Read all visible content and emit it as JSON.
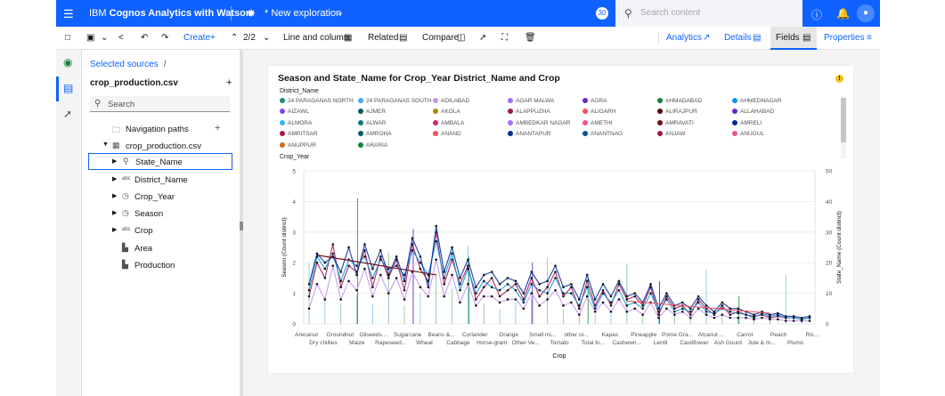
{
  "header": {
    "brand_light": "IBM ",
    "brand_bold": "Cognos Analytics with Watson",
    "exploration_title": "* New exploration",
    "notification_count": "30",
    "search_placeholder": "Search content"
  },
  "toolbar": {
    "create_label": "Create",
    "page_indicator": "2/2",
    "visualization_label": "Line and column",
    "related_label": "Related",
    "compare_label": "Compare",
    "tabs": [
      "Analytics",
      "Details",
      "Fields",
      "Properties"
    ]
  },
  "panel": {
    "breadcrumb": "Selected sources",
    "breadcrumb_sep": "/",
    "source_name": "crop_production.csv",
    "search_placeholder": "Search",
    "tree": [
      {
        "label": "Navigation paths",
        "icon": "folder-icon"
      },
      {
        "label": "crop_production.csv",
        "icon": "table-icon"
      },
      {
        "label": "State_Name",
        "icon": "location-icon"
      },
      {
        "label": "District_Name",
        "icon": "text-field-icon"
      },
      {
        "label": "Crop_Year",
        "icon": "clock-icon"
      },
      {
        "label": "Season",
        "icon": "clock-icon"
      },
      {
        "label": "Crop",
        "icon": "text-field-icon"
      },
      {
        "label": "Area",
        "icon": "measure-icon"
      },
      {
        "label": "Production",
        "icon": "measure-icon"
      }
    ]
  },
  "visualization": {
    "title": "Season and State_Name for Crop_Year District_Name and Crop",
    "legend_title": "District_Name",
    "legend_items": [
      {
        "label": "24 PARAGANAS NORTH",
        "color": "#1f8b7a"
      },
      {
        "label": "24 PARAGANAS SOUTH",
        "color": "#4aa6ee"
      },
      {
        "label": "ADILABAD",
        "color": "#c493ee"
      },
      {
        "label": "AGAR MALWA",
        "color": "#a56eff"
      },
      {
        "label": "AGRA",
        "color": "#6929c4"
      },
      {
        "label": "AHMADABAD",
        "color": "#198038"
      },
      {
        "label": "AHMEDNAGAR",
        "color": "#1192e8"
      },
      {
        "label": "AIZAWL",
        "color": "#8a3ffc"
      },
      {
        "label": "AJMER",
        "color": "#005d5d"
      },
      {
        "label": "AKOLA",
        "color": "#b28600"
      },
      {
        "label": "ALAPPUZHA",
        "color": "#9f1853"
      },
      {
        "label": "ALIGARH",
        "color": "#fa4d56"
      },
      {
        "label": "ALIRAJPUR",
        "color": "#570408"
      },
      {
        "label": "ALLAHABAD",
        "color": "#6929c4"
      },
      {
        "label": "ALMORA",
        "color": "#33b1ff"
      },
      {
        "label": "ALWAR",
        "color": "#007d79"
      },
      {
        "label": "AMBALA",
        "color": "#d02670"
      },
      {
        "label": "AMBEDKAR NAGAR",
        "color": "#a56eff"
      },
      {
        "label": "AMETHI",
        "color": "#ee538b"
      },
      {
        "label": "AMRAVATI",
        "color": "#750e13"
      },
      {
        "label": "AMRELI",
        "color": "#002d9c"
      },
      {
        "label": "AMRITSAR",
        "color": "#9f1853"
      },
      {
        "label": "AMROHA",
        "color": "#005d5d"
      },
      {
        "label": "ANAND",
        "color": "#fa4d56"
      },
      {
        "label": "ANANTAPUR",
        "color": "#002d9c"
      },
      {
        "label": "ANANTNAG",
        "color": "#00539a"
      },
      {
        "label": "ANJAW",
        "color": "#9f1853"
      },
      {
        "label": "ANUGUL",
        "color": "#ee5396"
      },
      {
        "label": "ANUPPUR",
        "color": "#d2691e"
      },
      {
        "label": "ARARIA",
        "color": "#198038"
      }
    ],
    "legend_subtitle": "Crop_Year"
  },
  "chart_data": {
    "type": "line",
    "xlabel": "Crop",
    "ylabel": "Season (Count distinct)",
    "ylabel_right": "State_Name (Count distinct)",
    "ylim": [
      0,
      5
    ],
    "ylim_right": [
      0,
      50
    ],
    "yticks_left": [
      "0",
      "1",
      "2",
      "3",
      "4",
      "5"
    ],
    "yticks_right": [
      "0",
      "10",
      "20",
      "30",
      "40",
      "50"
    ],
    "x_tick_labels_top": [
      "Arecanut",
      "Groundnut",
      "Oilseeds....",
      "Sugarcane",
      "Beans &...",
      "Coriander",
      "Orange",
      "Small mi...",
      "other oi...",
      "Kapas",
      "Pineapple",
      "Pome Gra...",
      "Atcanut ...",
      "Carrot",
      "Peach",
      "Ric..."
    ],
    "x_tick_labels_bottom": [
      "Dry chillies",
      "Maize",
      "Rapeseed...",
      "Wheat",
      "Cabbage",
      "Horse-gram",
      "Other Ve...",
      "Tomato",
      "Total fo...",
      "Cashewn...",
      "Lentil",
      "Cauliflower",
      "Ash Gourd",
      "Jute & m...",
      "Plums"
    ],
    "grid": true,
    "legend_position": "top",
    "series": [
      {
        "name": "24 PARAGANAS NORTH",
        "values": [
          0.9,
          2.0,
          1.5,
          2.6,
          1.2,
          1.9,
          1.7,
          2.4,
          1.2,
          2.2,
          1.5,
          2.1,
          1.1,
          2.6,
          1.8,
          1.4,
          3.0,
          1.3,
          2.1,
          1.3,
          1.9,
          0.8,
          1.2,
          1.5,
          0.9,
          1.1,
          1.3,
          0.8,
          1.5,
          0.9,
          1.2,
          1.7,
          0.9,
          1.2,
          0.5,
          1.4,
          0.6,
          1.1,
          0.6,
          1.3,
          0.8,
          0.9,
          0.6,
          1.2,
          0.3,
          0.9,
          0.5,
          0.6,
          0.3,
          0.8,
          0.5,
          0.3,
          0.6,
          0.3,
          0.4,
          0.3,
          0.25,
          0.3,
          0.2,
          0.25,
          0.2,
          0.2,
          0.15,
          0.2
        ]
      },
      {
        "name": "24 PARAGANAS SOUTH",
        "values": [
          1.1,
          2.2,
          1.8,
          2.3,
          1.4,
          2.1,
          1.9,
          2.2,
          1.5,
          2.1,
          1.8,
          1.9,
          1.6,
          2.4,
          2.0,
          1.6,
          2.7,
          1.5,
          2.3,
          1.1,
          1.8,
          1.0,
          1.4,
          1.2,
          1.1,
          1.3,
          1.1,
          0.7,
          1.3,
          1.1,
          1.0,
          1.5,
          1.0,
          1.0,
          0.6,
          1.2,
          0.5,
          1.0,
          0.7,
          1.1,
          0.6,
          0.7,
          0.5,
          1.0,
          0.4,
          0.8,
          0.4,
          0.5,
          0.4,
          0.7,
          0.4,
          0.35,
          0.5,
          0.4,
          0.35,
          0.3,
          0.2,
          0.35,
          0.25,
          0.3,
          0.2,
          0.2,
          0.15,
          0.2
        ]
      },
      {
        "name": "ADILABAD",
        "values": [
          0.5,
          1.3,
          0.8,
          1.9,
          0.8,
          1.4,
          1.1,
          1.8,
          0.9,
          1.6,
          1.0,
          1.5,
          0.8,
          1.7,
          1.2,
          0.9,
          2.1,
          0.9,
          1.6,
          0.7,
          1.3,
          0.6,
          0.9,
          0.9,
          0.7,
          0.8,
          0.8,
          0.5,
          1.0,
          0.6,
          0.8,
          1.1,
          0.6,
          0.7,
          0.3,
          0.9,
          0.4,
          0.7,
          0.4,
          0.8,
          0.4,
          0.5,
          0.3,
          0.7,
          0.2,
          0.5,
          0.3,
          0.4,
          0.2,
          0.5,
          0.3,
          0.2,
          0.3,
          0.2,
          0.2,
          0.2,
          0.15,
          0.2,
          0.15,
          0.15,
          0.1,
          0.1,
          0.1,
          0.1
        ]
      },
      {
        "name": "AGRA",
        "values": [
          1.3,
          2.3,
          2.0,
          2.2,
          1.7,
          2.5,
          1.6,
          2.6,
          1.8,
          2.4,
          1.6,
          2.2,
          1.4,
          2.8,
          2.2,
          1.2,
          3.2,
          1.7,
          2.5,
          1.5,
          2.1,
          1.2,
          1.6,
          1.7,
          1.3,
          1.5,
          1.4,
          1.0,
          1.7,
          1.3,
          1.4,
          1.9,
          1.2,
          1.3,
          0.8,
          1.6,
          0.8,
          1.3,
          0.9,
          1.4,
          0.9,
          1.0,
          0.7,
          1.3,
          0.5,
          1.0,
          0.6,
          0.7,
          0.5,
          0.9,
          0.6,
          0.4,
          0.7,
          0.5,
          0.5,
          0.4,
          0.3,
          0.4,
          0.3,
          0.35,
          0.25,
          0.25,
          0.2,
          0.25
        ]
      }
    ]
  }
}
